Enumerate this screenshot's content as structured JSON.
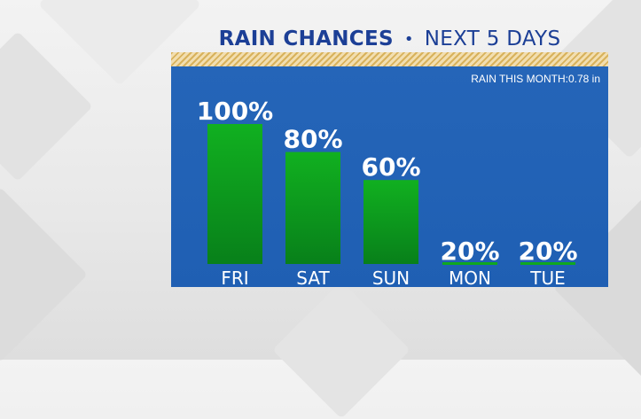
{
  "header": {
    "title": "RAIN CHANCES",
    "separator": "•",
    "subtitle": "NEXT 5 DAYS"
  },
  "rain_this_month": "RAIN THIS MONTH:0.78 in",
  "colors": {
    "title": "#1c3f96",
    "panel": "#2163b6",
    "bar": "#0b9a18",
    "stripe": "#d8b25c",
    "text": "#ffffff"
  },
  "chart_data": {
    "type": "bar",
    "title": "RAIN CHANCES • NEXT 5 DAYS",
    "categories": [
      "FRI",
      "SAT",
      "SUN",
      "MON",
      "TUE"
    ],
    "values": [
      100,
      80,
      60,
      20,
      20
    ],
    "value_labels": [
      "100%",
      "80%",
      "60%",
      "20%",
      "20%"
    ],
    "unit": "%",
    "ylim": [
      0,
      100
    ],
    "grid": false,
    "legend": "none",
    "notes": "MON and TUE bars are drawn as thin underline markers"
  }
}
